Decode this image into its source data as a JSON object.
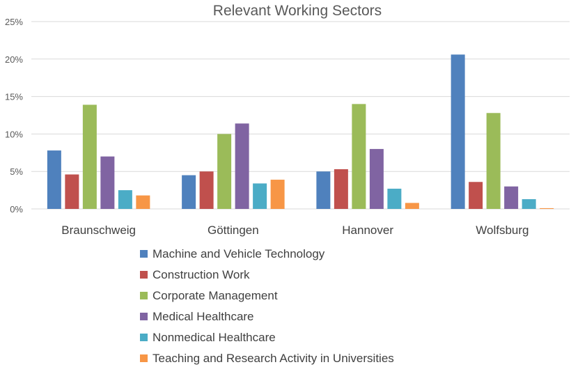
{
  "chart_data": {
    "type": "bar",
    "title": "Relevant Working Sectors",
    "xlabel": "",
    "ylabel": "",
    "ylim": [
      0,
      25
    ],
    "y_ticks": [
      "0%",
      "5%",
      "10%",
      "15%",
      "20%",
      "25%"
    ],
    "y_tick_values": [
      0,
      5,
      10,
      15,
      20,
      25
    ],
    "grid": true,
    "legend_position": "bottom",
    "categories": [
      "Braunschweig",
      "Göttingen",
      "Hannover",
      "Wolfsburg"
    ],
    "series": [
      {
        "name": "Machine and Vehicle Technology",
        "color": "#4f81bd",
        "values": [
          7.8,
          4.5,
          5.0,
          20.6
        ]
      },
      {
        "name": "Construction Work",
        "color": "#c0504d",
        "values": [
          4.6,
          5.0,
          5.3,
          3.6
        ]
      },
      {
        "name": "Corporate Management",
        "color": "#9bbb59",
        "values": [
          13.9,
          10.0,
          14.0,
          12.8
        ]
      },
      {
        "name": "Medical Healthcare",
        "color": "#8064a2",
        "values": [
          7.0,
          11.4,
          8.0,
          3.0
        ]
      },
      {
        "name": "Nonmedical Healthcare",
        "color": "#4bacc6",
        "values": [
          2.5,
          3.4,
          2.7,
          1.3
        ]
      },
      {
        "name": "Teaching and Research Activity in Universities",
        "color": "#f79646",
        "values": [
          1.8,
          3.9,
          0.8,
          0.1
        ]
      }
    ]
  }
}
